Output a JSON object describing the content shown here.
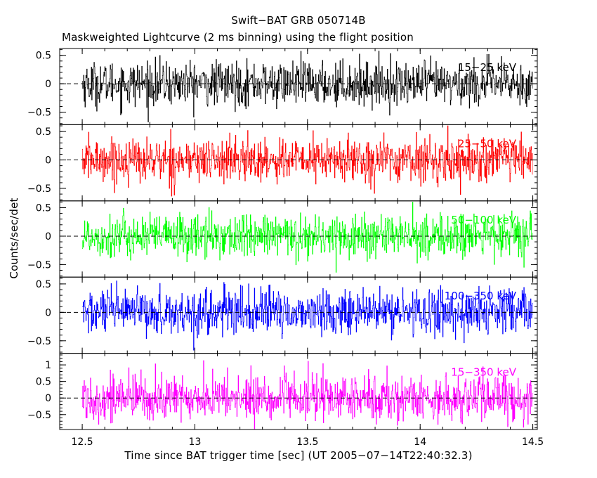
{
  "chart_data": {
    "type": "line",
    "title": "Swift−BAT GRB 050714B",
    "subtitle": "Maskweighted Lightcurve (2 ms binning) using the flight position",
    "xlabel": "Time since BAT trigger time [sec] (UT 2005−07−14T22:40:32.3)",
    "ylabel": "Counts/sec/det",
    "xlim": [
      12.4,
      14.52
    ],
    "data_x_range": [
      12.5,
      14.5
    ],
    "bin_width_s": 0.002,
    "x_ticks": [
      12.5,
      13,
      13.5,
      14,
      14.5
    ],
    "x_tick_labels": [
      "12.5",
      "13",
      "13.5",
      "14",
      "14.5"
    ],
    "zero_line": "dashed",
    "grid": false,
    "panels": [
      {
        "name": "15−25 keV",
        "color": "#000000",
        "ylim": [
          -0.72,
          0.62
        ],
        "y_ticks": [
          -0.5,
          0,
          0.5
        ],
        "y_tick_labels": [
          "−0.5",
          "0",
          "0.5"
        ],
        "noise_amplitude": 0.6
      },
      {
        "name": "25−50 keV",
        "color": "#ff0000",
        "ylim": [
          -0.72,
          0.62
        ],
        "y_ticks": [
          -0.5,
          0,
          0.5
        ],
        "y_tick_labels": [
          "−0.5",
          "0",
          "0.5"
        ],
        "noise_amplitude": 0.6
      },
      {
        "name": "50−100 keV",
        "color": "#00ff00",
        "ylim": [
          -0.72,
          0.62
        ],
        "y_ticks": [
          -0.5,
          0,
          0.5
        ],
        "y_tick_labels": [
          "−0.5",
          "0",
          "0.5"
        ],
        "noise_amplitude": 0.6
      },
      {
        "name": "100−350 keV",
        "color": "#0000ff",
        "ylim": [
          -0.72,
          0.62
        ],
        "y_ticks": [
          -0.5,
          0,
          0.5
        ],
        "y_tick_labels": [
          "−0.5",
          "0",
          "0.5"
        ],
        "noise_amplitude": 0.62
      },
      {
        "name": "15−350 keV",
        "color": "#ff00ff",
        "ylim": [
          -0.95,
          1.35
        ],
        "y_ticks": [
          -0.5,
          0,
          0.5,
          1
        ],
        "y_tick_labels": [
          "−0.5",
          "0",
          "0.5",
          "1"
        ],
        "noise_amplitude": 1.1
      }
    ]
  }
}
